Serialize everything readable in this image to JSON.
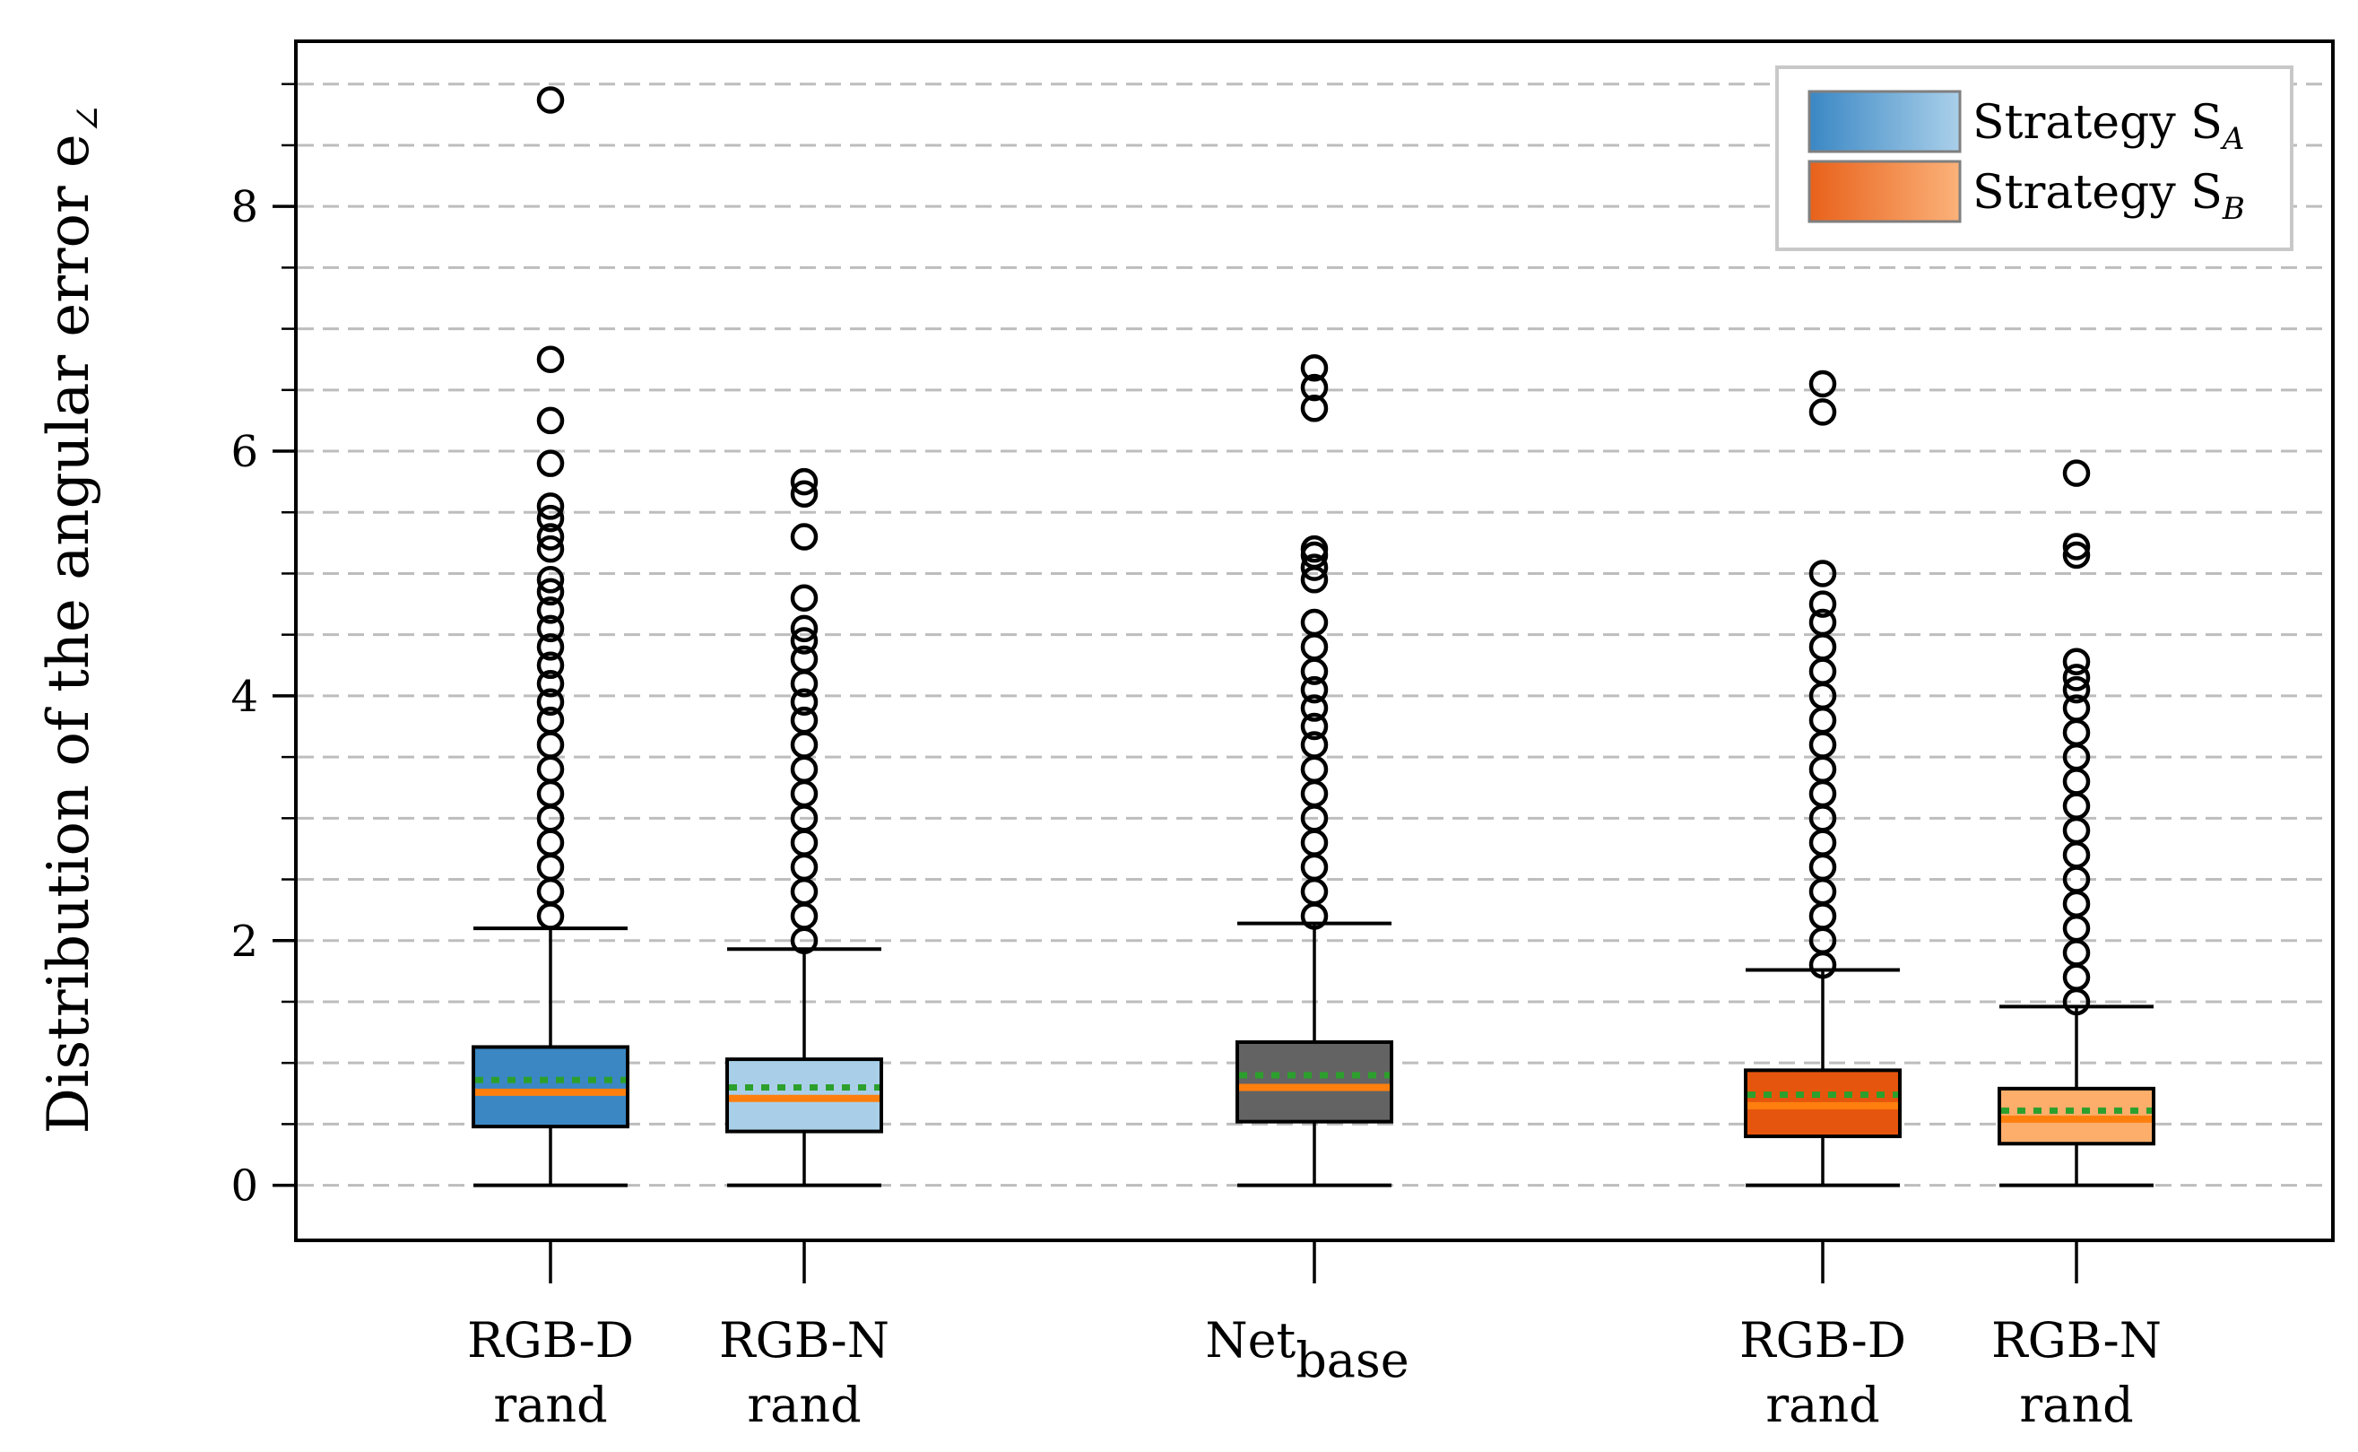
{
  "chart_data": {
    "type": "box",
    "title": "",
    "ylabel": "Distribution of the angular error e",
    "ylabel_subscript": "∠",
    "xlabel": "",
    "ylim": [
      -0.45,
      9.35
    ],
    "yticks": [
      0,
      2,
      4,
      6,
      8
    ],
    "ytick_labels": [
      "0",
      "2",
      "4",
      "6",
      "8"
    ],
    "grid": "horizontal dashed, every 0.5",
    "legend_position": "top-right",
    "legend": [
      {
        "label": "Strategy S",
        "subscript": "A",
        "color_left": "#3a87c4",
        "color_right": "#aad0ea"
      },
      {
        "label": "Strategy S",
        "subscript": "B",
        "color_left": "#e8611a",
        "color_right": "#fbb27a"
      }
    ],
    "boxes": [
      {
        "label_line1": "RGB-D",
        "label_line2": "rand",
        "label_sub": "",
        "strategy": "A",
        "color": "#3a87c4",
        "whisker_low": 0.0,
        "q1": 0.48,
        "median": 0.76,
        "mean": 0.86,
        "q3": 1.13,
        "whisker_high": 2.1,
        "outliers": [
          2.2,
          2.4,
          2.6,
          2.8,
          3.0,
          3.2,
          3.4,
          3.6,
          3.8,
          3.95,
          4.1,
          4.25,
          4.4,
          4.55,
          4.7,
          4.85,
          4.95,
          5.2,
          5.3,
          5.45,
          5.55,
          5.9,
          6.25,
          6.75,
          8.87
        ]
      },
      {
        "label_line1": "RGB-N",
        "label_line2": "rand",
        "label_sub": "",
        "strategy": "A",
        "color": "#a9cfe8",
        "whisker_low": 0.0,
        "q1": 0.44,
        "median": 0.71,
        "mean": 0.8,
        "q3": 1.03,
        "whisker_high": 1.93,
        "outliers": [
          2.0,
          2.2,
          2.4,
          2.6,
          2.8,
          3.0,
          3.2,
          3.4,
          3.6,
          3.8,
          3.95,
          4.1,
          4.3,
          4.45,
          4.55,
          4.8,
          5.3,
          5.65,
          5.75
        ]
      },
      {
        "label_line1": "Net",
        "label_line2": "",
        "label_sub": "base",
        "strategy": "",
        "color": "#636363",
        "whisker_low": 0.0,
        "q1": 0.52,
        "median": 0.8,
        "mean": 0.9,
        "q3": 1.17,
        "whisker_high": 2.14,
        "outliers": [
          2.2,
          2.4,
          2.6,
          2.8,
          3.0,
          3.2,
          3.4,
          3.6,
          3.75,
          3.9,
          4.05,
          4.2,
          4.4,
          4.6,
          4.95,
          5.05,
          5.15,
          5.2,
          6.35,
          6.52,
          6.68
        ]
      },
      {
        "label_line1": "RGB-D",
        "label_line2": "rand",
        "label_sub": "",
        "strategy": "B",
        "color": "#e6550d",
        "whisker_low": 0.0,
        "q1": 0.4,
        "median": 0.65,
        "mean": 0.74,
        "q3": 0.94,
        "whisker_high": 1.76,
        "outliers": [
          1.8,
          2.0,
          2.2,
          2.4,
          2.6,
          2.8,
          3.0,
          3.2,
          3.4,
          3.6,
          3.8,
          4.0,
          4.2,
          4.4,
          4.6,
          4.75,
          5.0,
          6.32,
          6.55
        ]
      },
      {
        "label_line1": "RGB-N",
        "label_line2": "rand",
        "label_sub": "",
        "strategy": "B",
        "color": "#fdae6b",
        "whisker_low": 0.0,
        "q1": 0.34,
        "median": 0.54,
        "mean": 0.61,
        "q3": 0.79,
        "whisker_high": 1.46,
        "outliers": [
          1.5,
          1.7,
          1.9,
          2.1,
          2.3,
          2.5,
          2.7,
          2.9,
          3.1,
          3.3,
          3.5,
          3.7,
          3.9,
          4.05,
          4.15,
          4.28,
          5.15,
          5.22,
          5.82
        ]
      }
    ]
  }
}
